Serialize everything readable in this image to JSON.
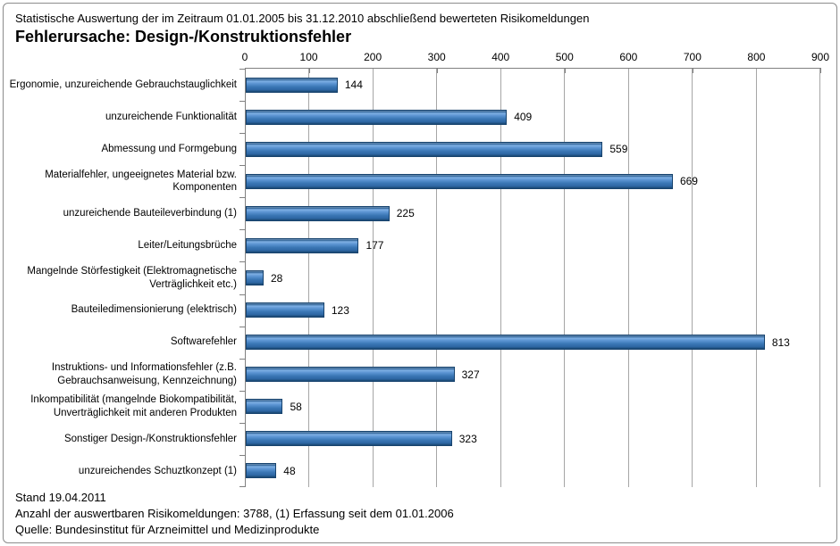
{
  "header": {
    "subtitle": "Statistische Auswertung der im Zeitraum 01.01.2005 bis 31.12.2010 abschließend bewerteten Risikomeldungen",
    "title": "Fehlerursache: Design-/Konstruktionsfehler"
  },
  "chart_data": {
    "type": "bar",
    "orientation": "horizontal",
    "title": "Fehlerursache: Design-/Konstruktionsfehler",
    "categories": [
      "Ergonomie, unzureichende Gebrauchstauglichkeit",
      "unzureichende Funktionalität",
      "Abmessung und Formgebung",
      "Materialfehler, ungeeignetes Material bzw. Komponenten",
      "unzureichende Bauteileverbindung (1)",
      "Leiter/Leitungsbrüche",
      "Mangelnde Störfestigkeit (Elektromagnetische Verträglichkeit etc.)",
      "Bauteiledimensionierung (elektrisch)",
      "Softwarefehler",
      "Instruktions- und Informationsfehler (z.B. Gebrauchsanweisung, Kennzeichnung)",
      "Inkompatibilität (mangelnde Biokompatibilität, Unverträglichkeit mit anderen Produkten",
      "Sonstiger Design-/Konstruktionsfehler",
      "unzureichendes Schuztkonzept (1)"
    ],
    "values": [
      144,
      409,
      559,
      669,
      225,
      177,
      28,
      123,
      813,
      327,
      58,
      323,
      48
    ],
    "xlim": [
      0,
      900
    ],
    "x_ticks": [
      0,
      100,
      200,
      300,
      400,
      500,
      600,
      700,
      800,
      900
    ],
    "grid": true,
    "legend": "none",
    "bar_color": "#3b77b5",
    "bar_highlight": "#7fb0e4",
    "bar_edge": "#17436e",
    "gridline_color": "#a6a6a6",
    "axis_color": "#808080"
  },
  "footer": {
    "line1": "Stand 19.04.2011",
    "line2": "Anzahl der auswertbaren Risikomeldungen: 3788, (1) Erfassung seit dem 01.01.2006",
    "line3": "Quelle: Bundesinstitut für Arzneimittel und Medizinprodukte"
  }
}
